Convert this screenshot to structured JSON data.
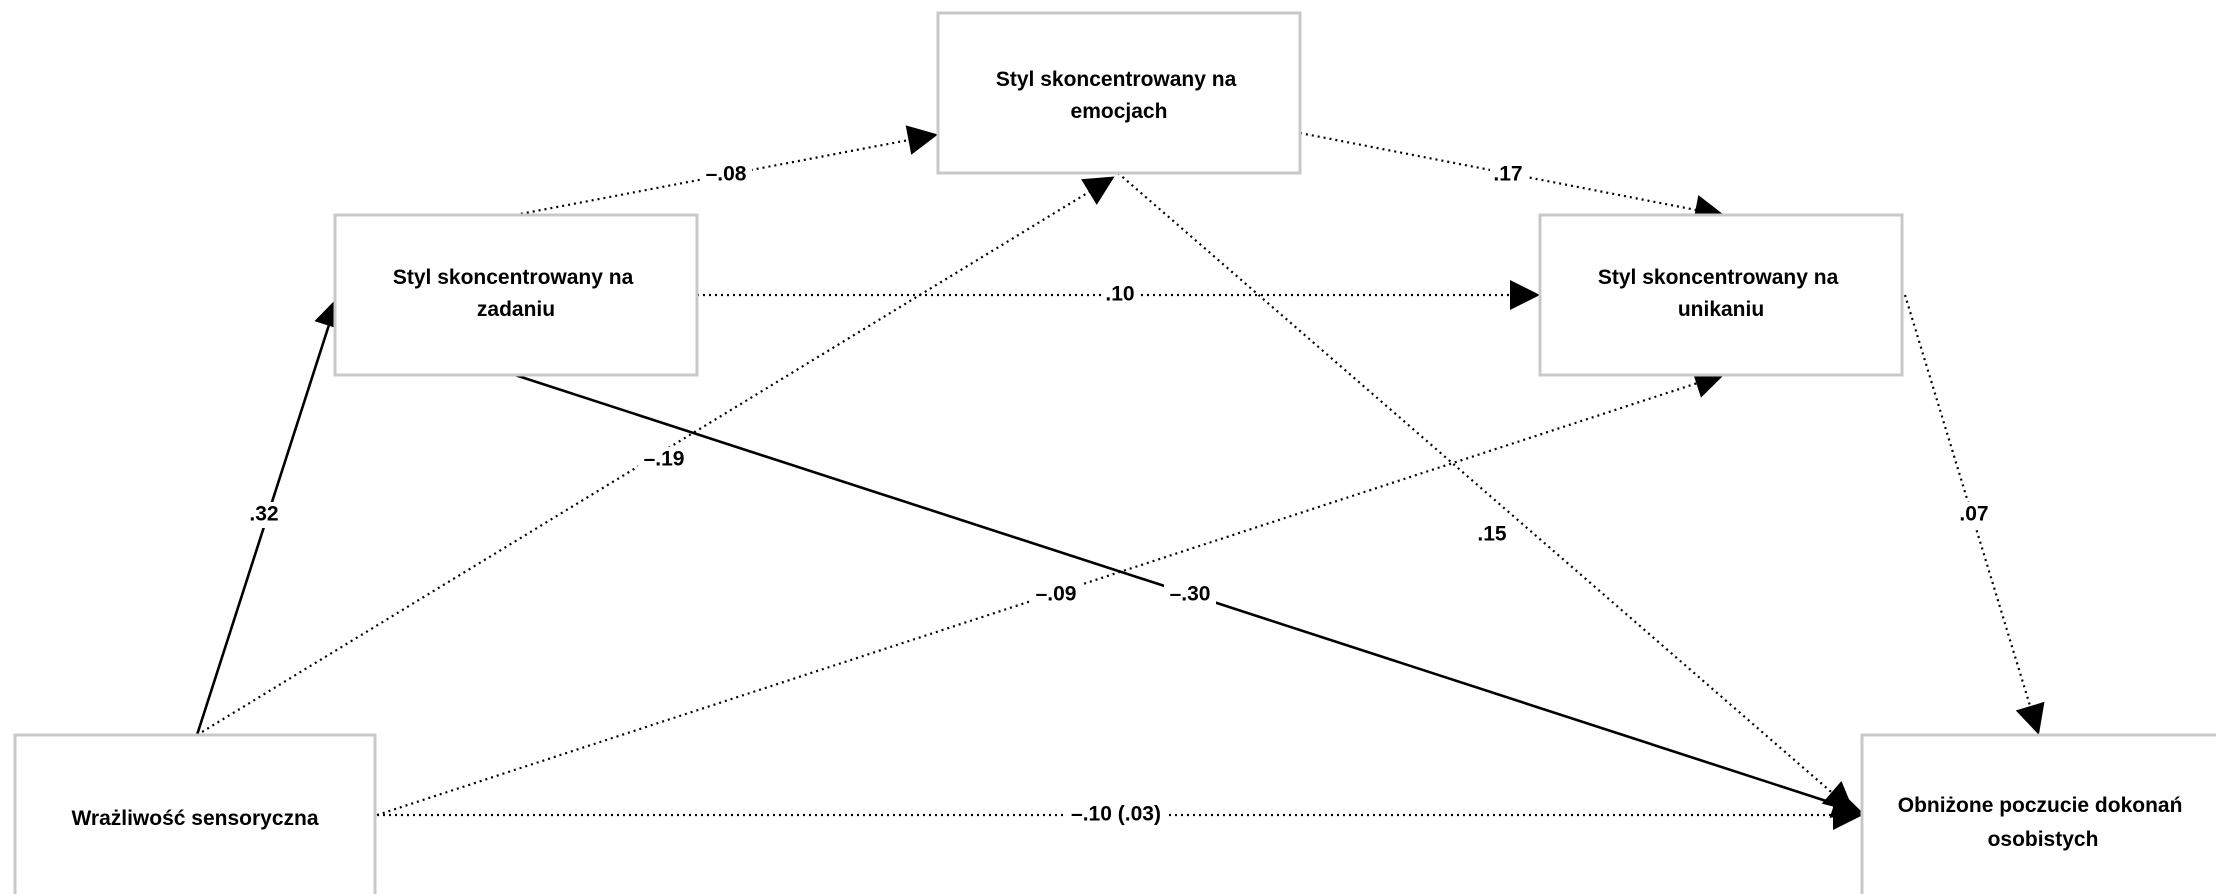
{
  "nodes": {
    "emotion": {
      "lines": [
        "Styl skoncentrowany na",
        "emocjach"
      ]
    },
    "task": {
      "lines": [
        "Styl skoncentrowany na",
        "zadaniu"
      ]
    },
    "avoid": {
      "lines": [
        "Styl skoncentrowany na",
        "unikaniu"
      ]
    },
    "sensory": {
      "lines": [
        "Wrażliwość sensoryczna"
      ]
    },
    "outcome": {
      "lines": [
        "Obniżone poczucie dokonań",
        "osobistych"
      ]
    }
  },
  "edges": {
    "task_emotion": {
      "label": "–.08",
      "style": "dotted"
    },
    "emotion_avoid": {
      "label": ".17",
      "style": "dotted"
    },
    "task_avoid": {
      "label": ".10",
      "style": "dotted"
    },
    "sensory_task": {
      "label": ".32",
      "style": "solid"
    },
    "sensory_emotion": {
      "label": "–.19",
      "style": "dotted"
    },
    "emotion_outcome": {
      "label": ".15",
      "style": "dotted"
    },
    "avoid_outcome": {
      "label": ".07",
      "style": "dotted"
    },
    "sensory_avoid": {
      "label": "–.09",
      "style": "dotted"
    },
    "task_outcome": {
      "label": "–.30",
      "style": "solid"
    },
    "sensory_outcome": {
      "label": "–.10 (.03)",
      "style": "dotted"
    }
  }
}
